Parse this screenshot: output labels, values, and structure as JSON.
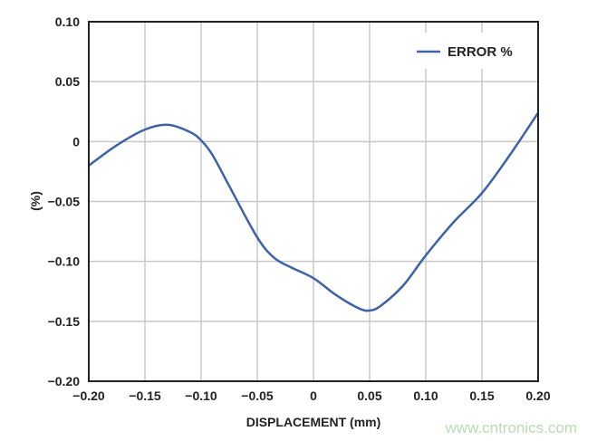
{
  "chart_data": {
    "type": "line",
    "title": "",
    "xlabel": "DISPLACEMENT (mm)",
    "ylabel": "(%)",
    "xlim": [
      -0.2,
      0.2
    ],
    "ylim": [
      -0.2,
      0.1
    ],
    "grid": true,
    "legend_placement": "top-right",
    "x_ticks": [
      "−0.20",
      "−0.15",
      "−0.10",
      "−0.05",
      "0",
      "0.05",
      "0.10",
      "0.15",
      "0.20"
    ],
    "x_tick_values": [
      -0.2,
      -0.15,
      -0.1,
      -0.05,
      0,
      0.05,
      0.1,
      0.15,
      0.2
    ],
    "y_ticks": [
      "0.10",
      "0.05",
      "0",
      "−0.05",
      "−0.10",
      "−0.15",
      "−0.20"
    ],
    "y_tick_values": [
      0.1,
      0.05,
      0,
      -0.05,
      -0.1,
      -0.15,
      -0.2
    ],
    "series": [
      {
        "name": "ERROR %",
        "color": "#3d62a5",
        "x": [
          -0.2,
          -0.175,
          -0.15,
          -0.13,
          -0.11,
          -0.1,
          -0.09,
          -0.075,
          -0.05,
          -0.035,
          -0.02,
          0,
          0.02,
          0.04,
          0.05,
          0.06,
          0.08,
          0.1,
          0.125,
          0.15,
          0.175,
          0.2
        ],
        "y": [
          -0.02,
          -0.003,
          0.01,
          0.014,
          0.008,
          0.001,
          -0.011,
          -0.037,
          -0.08,
          -0.097,
          -0.105,
          -0.114,
          -0.128,
          -0.139,
          -0.141,
          -0.137,
          -0.12,
          -0.095,
          -0.067,
          -0.043,
          -0.011,
          0.024
        ]
      }
    ]
  },
  "watermark": "www.cntronics.com"
}
